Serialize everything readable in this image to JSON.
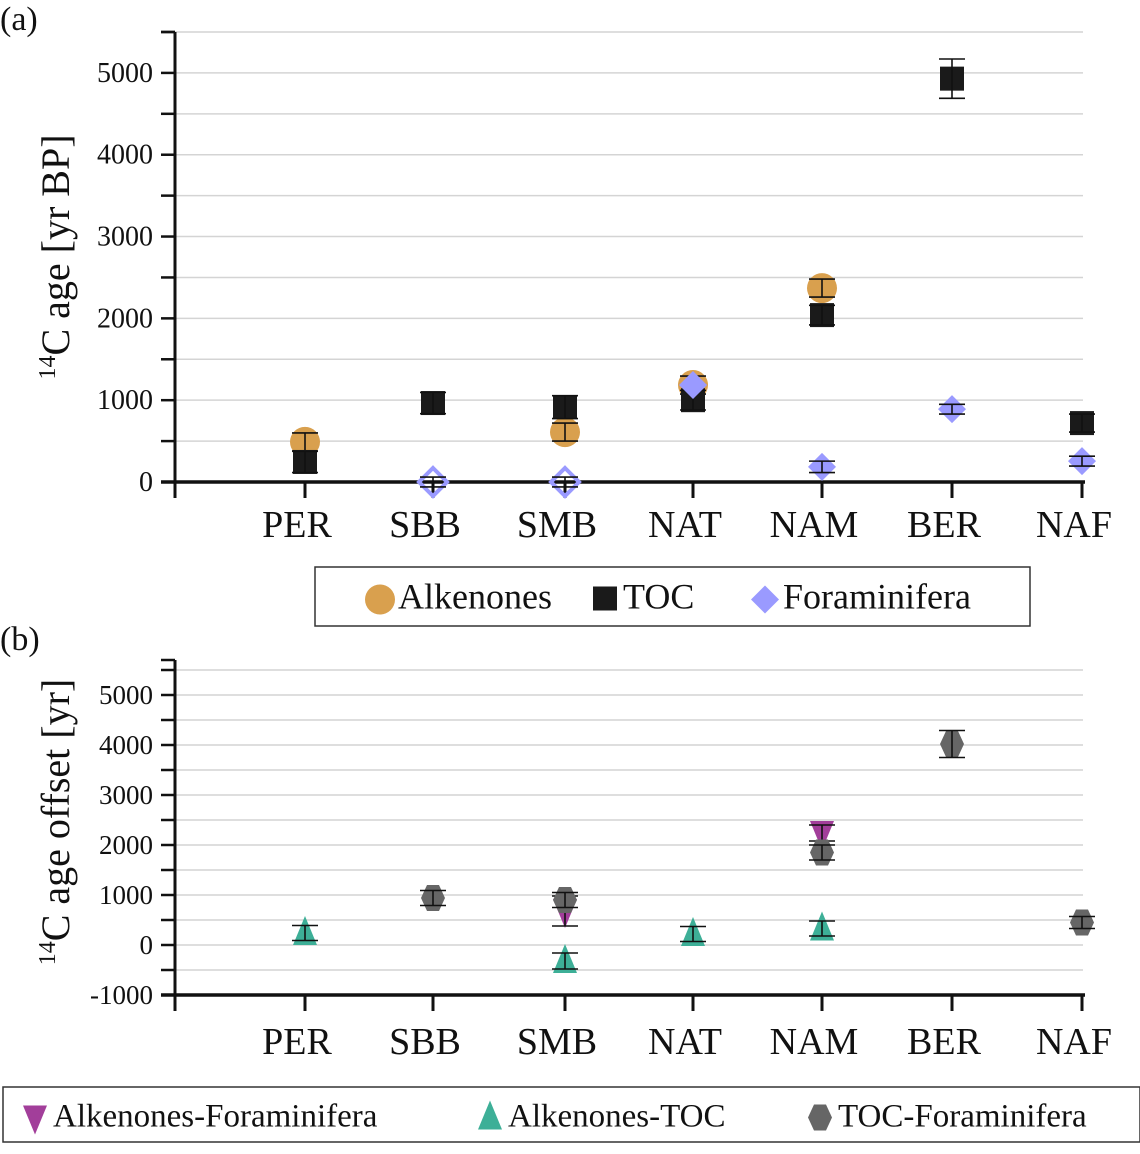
{
  "chart_data": [
    {
      "panel_label": "(a)",
      "type": "scatter",
      "ylabel_sup": "14",
      "ylabel": "C age [yr BP]",
      "xlabel": "",
      "categories": [
        "PER",
        "SBB",
        "SMB",
        "NAT",
        "NAM",
        "BER",
        "NAF"
      ],
      "ylim": [
        0,
        5500
      ],
      "yticks": [
        0,
        1000,
        2000,
        3000,
        4000,
        5000
      ],
      "grid": true,
      "legend_position": "bottom-center",
      "series": [
        {
          "name": "Alkenones",
          "marker": "circle",
          "color": "#D9A04E",
          "values": [
            490,
            null,
            610,
            1185,
            2370,
            null,
            null
          ],
          "errors": [
            110,
            null,
            110,
            110,
            110,
            null,
            null
          ]
        },
        {
          "name": "TOC",
          "marker": "square",
          "color": "#1A1A1A",
          "values": [
            245,
            965,
            915,
            1000,
            2040,
            4930,
            720
          ],
          "errors": [
            130,
            130,
            140,
            120,
            120,
            240,
            110
          ]
        },
        {
          "name": "Foraminifera",
          "marker": "diamond",
          "color": "#9A9AFF",
          "values": [
            null,
            0,
            0,
            1185,
            185,
            890,
            255
          ],
          "hollow": [
            false,
            true,
            true,
            false,
            false,
            false,
            false
          ],
          "errors": [
            null,
            60,
            60,
            null,
            70,
            60,
            60
          ]
        }
      ]
    },
    {
      "panel_label": "(b)",
      "type": "scatter",
      "ylabel_sup": "14",
      "ylabel": "C age offset [yr]",
      "xlabel": "",
      "categories": [
        "PER",
        "SBB",
        "SMB",
        "NAT",
        "NAM",
        "BER",
        "NAF"
      ],
      "ylim": [
        -1000,
        5700
      ],
      "yticks": [
        -1000,
        0,
        1000,
        2000,
        3000,
        4000,
        5000
      ],
      "ytick_labels": [
        "-1000",
        "0",
        "1000",
        "2000",
        "3000",
        "4000",
        "5000"
      ],
      "grid": true,
      "legend_position": "bottom",
      "series": [
        {
          "name": "Alkenones-Foraminifera",
          "marker": "triangle-down",
          "color": "#A23E9A",
          "values": [
            null,
            null,
            680,
            null,
            2240,
            null,
            null
          ],
          "errors": [
            null,
            null,
            300,
            null,
            160,
            null,
            null
          ]
        },
        {
          "name": "Alkenones-TOC",
          "marker": "triangle-up",
          "color": "#3DAF97",
          "values": [
            240,
            null,
            -320,
            220,
            330,
            null,
            null
          ],
          "errors": [
            150,
            null,
            160,
            150,
            150,
            null,
            null
          ]
        },
        {
          "name": "TOC-Foraminifera",
          "marker": "hexagon",
          "color": "#666666",
          "values": [
            null,
            940,
            900,
            null,
            1850,
            4020,
            450
          ],
          "errors": [
            null,
            150,
            150,
            null,
            150,
            270,
            120
          ]
        }
      ]
    }
  ]
}
